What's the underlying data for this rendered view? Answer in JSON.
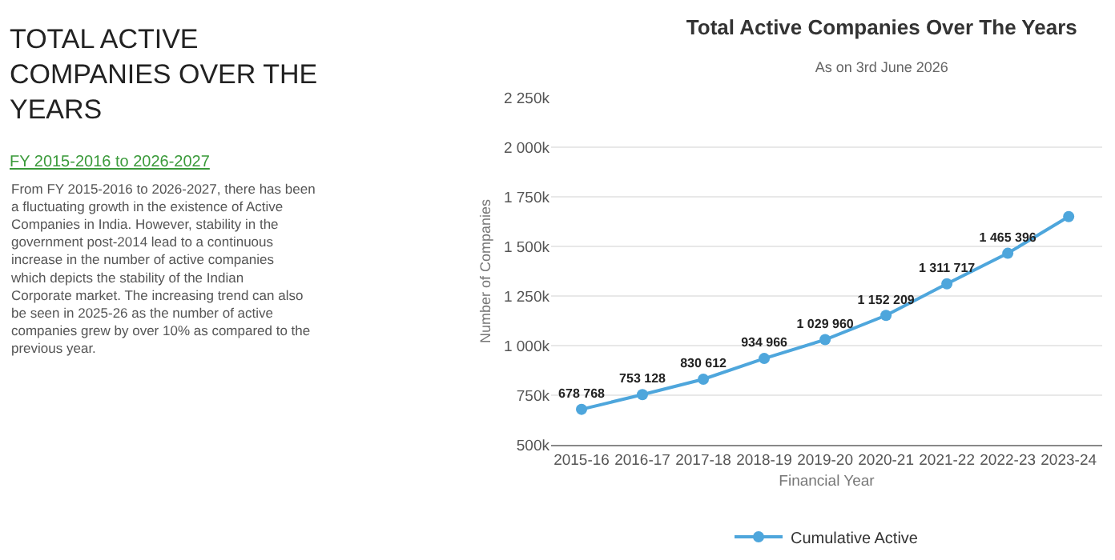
{
  "chart_data": {
    "type": "line",
    "title": "Total Active Companies Over The Years",
    "subtitle": "As on 3rd June 2026",
    "xlabel": "Financial Year",
    "ylabel": "Number of Companies",
    "annotations": [
      "TOTAL ACTIVE COMPANIES OVER THE YEARS",
      "FY 2015-2016 to 2026-2027",
      "From FY 2015-2016 to 2026-2027, there has been a fluctuating growth in the existence of Active Companies in India. However, stability in the government post-2014 lead to a continuous increase in the number of active companies which depicts the stability of the Indian Corporate market. The increasing trend can also be seen in 2025-26 as the number of active companies grew by over 10% as compared to the previous year."
    ],
    "categories": [
      "2015-16",
      "2016-17",
      "2017-18",
      "2018-19",
      "2019-20",
      "2020-21",
      "2021-22",
      "2022-23",
      "2023-24"
    ],
    "series": [
      {
        "name": "Cumulative Active",
        "color": "#4ea6dc",
        "values": [
          678768,
          753128,
          830612,
          934966,
          1029960,
          1152209,
          1311717,
          1465396,
          1650000
        ],
        "value_labels": [
          "678 768",
          "753 128",
          "830 612",
          "934 966",
          "1 029 960",
          "1 152 209",
          "1 311 717",
          "1 465 396",
          null
        ]
      }
    ],
    "ylim": [
      500000,
      2250000
    ],
    "yticks": [
      {
        "value": 500000,
        "label": "500k"
      },
      {
        "value": 750000,
        "label": "750k"
      },
      {
        "value": 1000000,
        "label": "1 000k"
      },
      {
        "value": 1250000,
        "label": "1 250k"
      },
      {
        "value": 1500000,
        "label": "1 500k"
      },
      {
        "value": 1750000,
        "label": "1 750k"
      },
      {
        "value": 2000000,
        "label": "2 000k"
      },
      {
        "value": 2250000,
        "label": "2 250k"
      }
    ],
    "grid": "y",
    "legend": "bottom",
    "marker": "circle",
    "line_style": "solid"
  }
}
